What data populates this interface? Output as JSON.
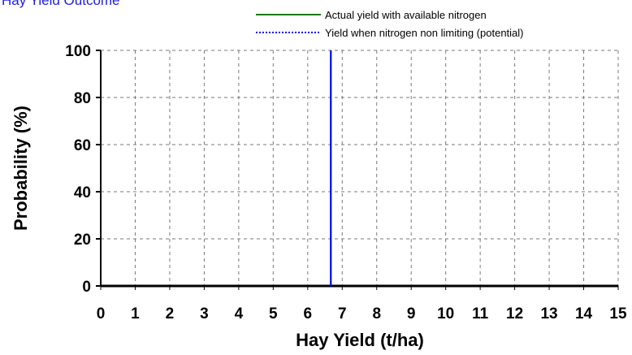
{
  "chart_data": {
    "type": "line",
    "title": "Hay Yield Outcome",
    "xlabel": "Hay Yield (t/ha)",
    "ylabel": "Probability (%)",
    "xlim": [
      0,
      15
    ],
    "ylim": [
      0,
      100
    ],
    "x_ticks": [
      "0",
      "1",
      "2",
      "3",
      "4",
      "5",
      "6",
      "7",
      "8",
      "9",
      "10",
      "11",
      "12",
      "13",
      "14",
      "15"
    ],
    "y_ticks": [
      "0",
      "20",
      "40",
      "60",
      "80",
      "100"
    ],
    "grid": true,
    "legend_position": "top-right",
    "series": [
      {
        "name": "Actual yield with available nitrogen",
        "color": "#1a7a1a",
        "style": "solid",
        "x": [
          6.67,
          6.67
        ],
        "y": [
          0,
          100
        ]
      },
      {
        "name": "Yield when nitrogen non limiting (potential)",
        "color": "#0000ff",
        "style": "dotted",
        "x": [
          6.67,
          6.67
        ],
        "y": [
          0,
          100
        ]
      }
    ]
  }
}
